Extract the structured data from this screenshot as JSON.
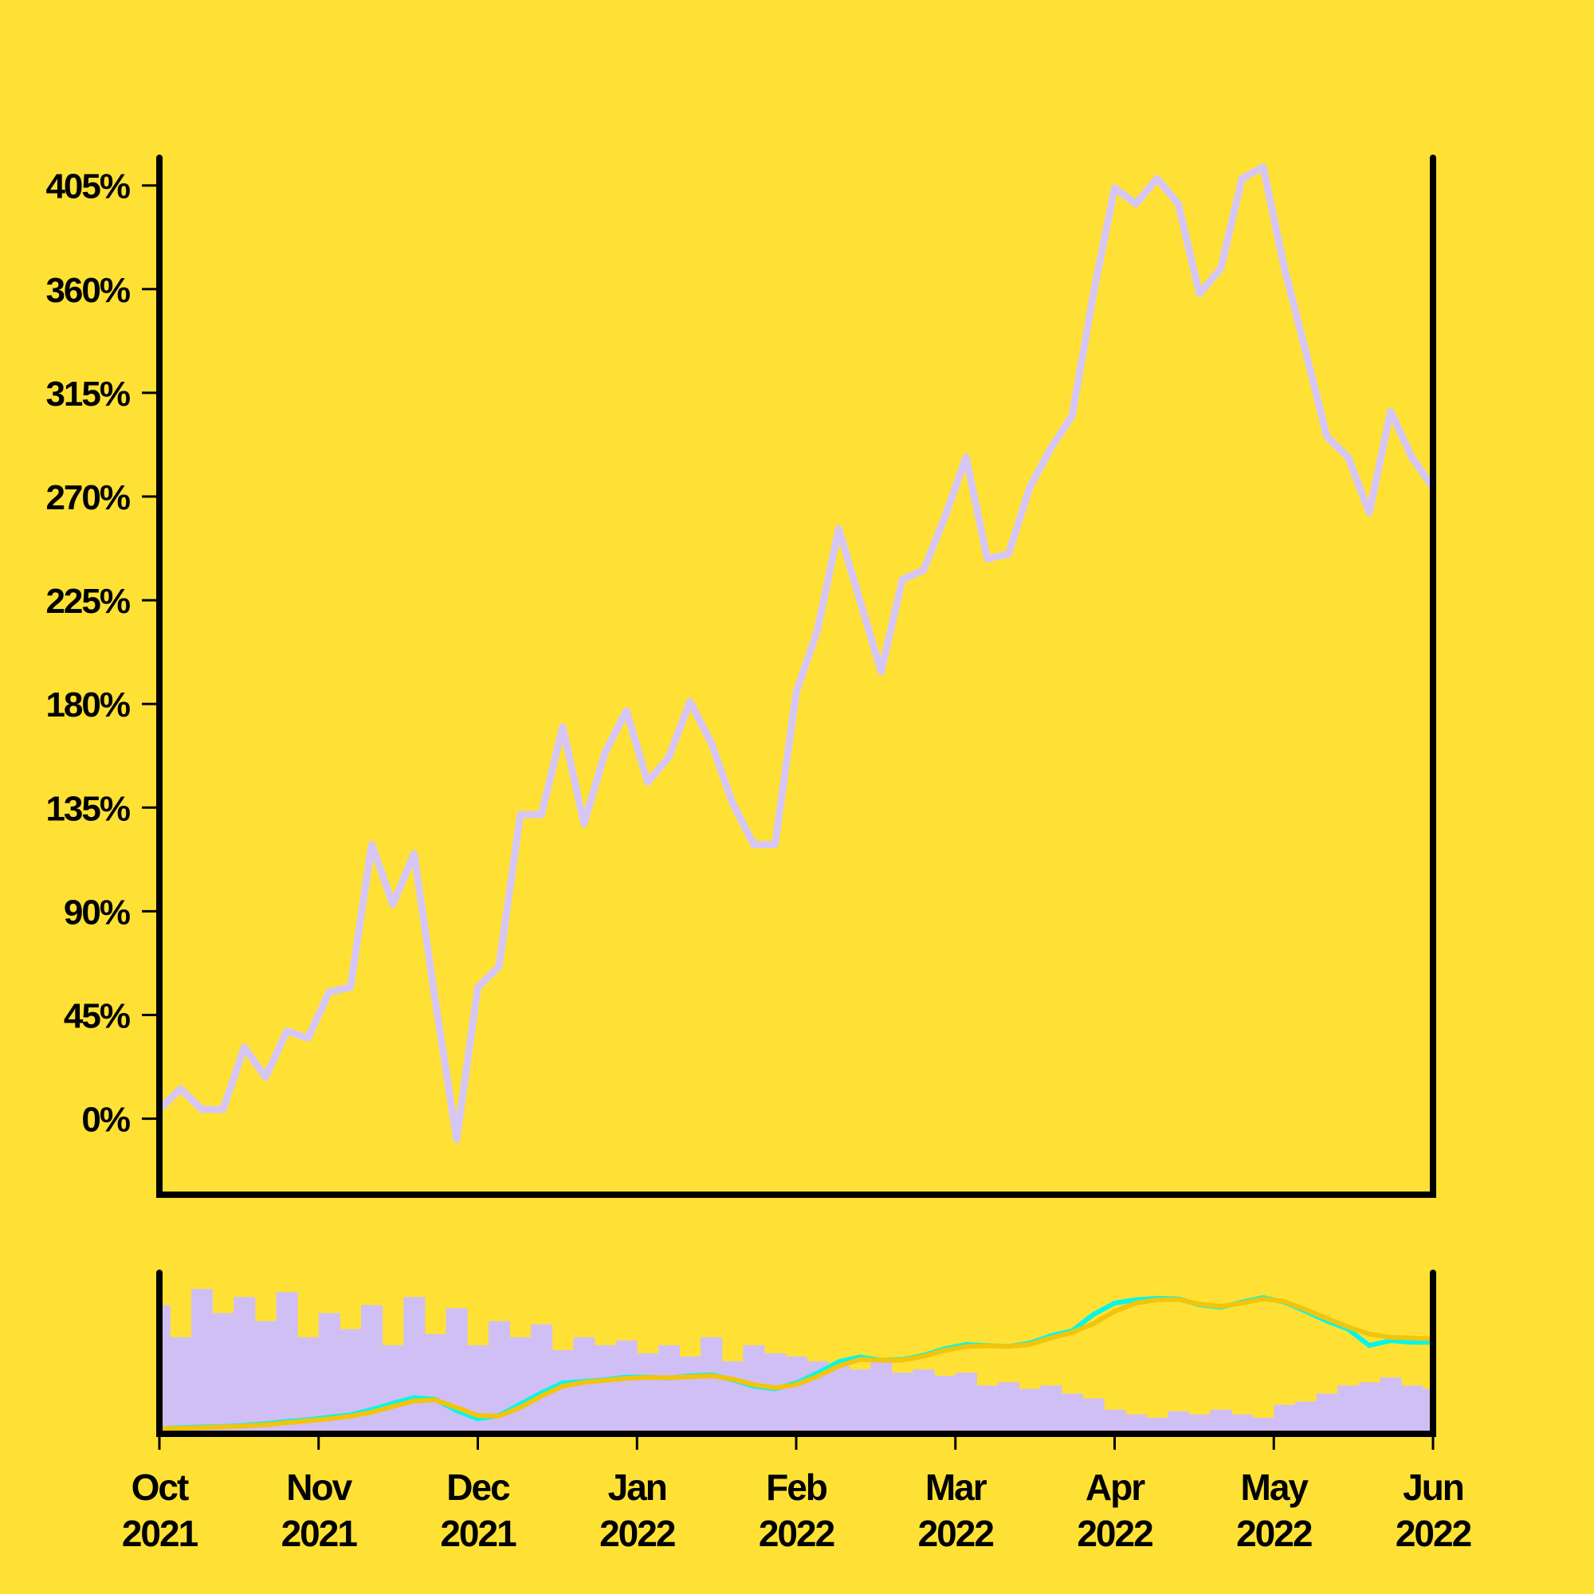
{
  "chart_data": [
    {
      "type": "line",
      "color": "#d6c6f6",
      "values": [
        4,
        13,
        4,
        4,
        31,
        18,
        38,
        35,
        55,
        57,
        119,
        93,
        115,
        51,
        -9,
        57,
        66,
        132,
        132,
        170,
        128,
        159,
        177,
        146,
        157,
        181,
        163,
        137,
        119,
        119,
        185,
        212,
        256,
        225,
        194,
        234,
        238,
        261,
        287,
        243,
        245,
        274,
        291,
        305,
        358,
        404,
        397,
        408,
        397,
        358,
        369,
        408,
        413,
        369,
        333,
        296,
        287,
        263,
        307,
        287,
        274
      ],
      "ylim": [
        -33,
        417
      ],
      "yticks": [
        {
          "value": 0,
          "label": "0%"
        },
        {
          "value": 45,
          "label": "45%"
        },
        {
          "value": 90,
          "label": "90%"
        },
        {
          "value": 135,
          "label": "135%"
        },
        {
          "value": 180,
          "label": "180%"
        },
        {
          "value": 225,
          "label": "225%"
        },
        {
          "value": 270,
          "label": "270%"
        },
        {
          "value": 315,
          "label": "315%"
        },
        {
          "value": 360,
          "label": "360%"
        },
        {
          "value": 405,
          "label": "405%"
        }
      ]
    },
    {
      "type": "bar",
      "ylim": [
        0,
        100
      ],
      "y2lim": [
        -16,
        478
      ],
      "series": [
        {
          "color": "#d0bff5",
          "values": [
            80,
            60,
            90,
            75,
            85,
            70,
            88,
            60,
            75,
            65,
            80,
            55,
            85,
            62,
            78,
            55,
            70,
            60,
            68,
            52,
            60,
            55,
            58,
            50,
            55,
            48,
            60,
            45,
            55,
            50,
            48,
            45,
            42,
            40,
            45,
            38,
            40,
            36,
            38,
            30,
            32,
            28,
            30,
            25,
            22,
            15,
            12,
            10,
            14,
            12,
            15,
            12,
            10,
            18,
            20,
            25,
            30,
            32,
            35,
            30,
            28
          ]
        },
        {
          "color": "#00f7ea",
          "axis": "y2",
          "values": [
            0,
            3,
            5,
            6,
            10,
            15,
            22,
            27,
            35,
            42,
            58,
            78,
            95,
            90,
            55,
            30,
            40,
            75,
            110,
            140,
            145,
            150,
            158,
            158,
            155,
            162,
            165,
            150,
            130,
            122,
            140,
            170,
            205,
            220,
            210,
            212,
            225,
            245,
            258,
            255,
            252,
            262,
            285,
            300,
            350,
            385,
            395,
            400,
            398,
            380,
            372,
            388,
            402,
            388,
            360,
            330,
            305,
            255,
            270,
            265,
            265
          ]
        },
        {
          "color": "#f2c40c",
          "axis": "y2",
          "values": [
            0,
            1,
            3,
            5,
            8,
            12,
            18,
            24,
            30,
            38,
            50,
            68,
            85,
            88,
            65,
            40,
            38,
            65,
            100,
            130,
            142,
            148,
            154,
            157,
            156,
            159,
            162,
            152,
            135,
            125,
            135,
            160,
            192,
            212,
            210,
            210,
            222,
            240,
            252,
            254,
            252,
            258,
            278,
            295,
            322,
            360,
            385,
            395,
            396,
            382,
            375,
            385,
            398,
            390,
            365,
            338,
            312,
            290,
            280,
            278,
            275
          ]
        }
      ],
      "xtick_labels": [
        [
          "Oct",
          "2021"
        ],
        [
          "Nov",
          "2021"
        ],
        [
          "Dec",
          "2021"
        ],
        [
          "Jan",
          "2022"
        ],
        [
          "Feb",
          "2022"
        ],
        [
          "Mar",
          "2022"
        ],
        [
          "Apr",
          "2022"
        ],
        [
          "May",
          "2022"
        ],
        [
          "Jun",
          "2022"
        ]
      ]
    }
  ]
}
